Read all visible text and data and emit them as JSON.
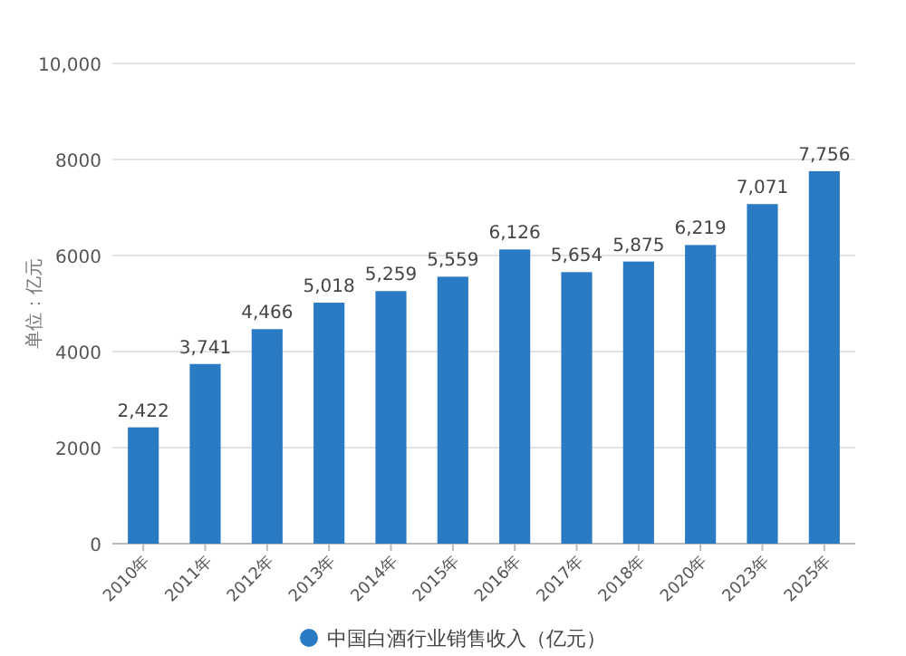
{
  "chart_data": {
    "type": "bar",
    "ylabel": "单位：亿元",
    "categories": [
      "2010年",
      "2011年",
      "2012年",
      "2013年",
      "2014年",
      "2015年",
      "2016年",
      "2017年",
      "2018年",
      "2020年",
      "2023年",
      "2025年"
    ],
    "series": [
      {
        "name": "中国白酒行业销售收入（亿元）",
        "color": "#2b7bc4",
        "values": [
          2422,
          3741,
          4466,
          5018,
          5259,
          5559,
          6126,
          5654,
          5875,
          6219,
          7071,
          7756
        ],
        "value_labels": [
          "2,422",
          "3,741",
          "4,466",
          "5,018",
          "5,259",
          "5,559",
          "6,126",
          "5,654",
          "5,875",
          "6,219",
          "7,071",
          "7,756"
        ]
      }
    ],
    "ylim": [
      0,
      10000
    ],
    "yticks": [
      0,
      2000,
      4000,
      6000,
      8000,
      {
        "value": 10000,
        "label": "10,000"
      }
    ],
    "grid": "y",
    "legend": "bottom"
  }
}
